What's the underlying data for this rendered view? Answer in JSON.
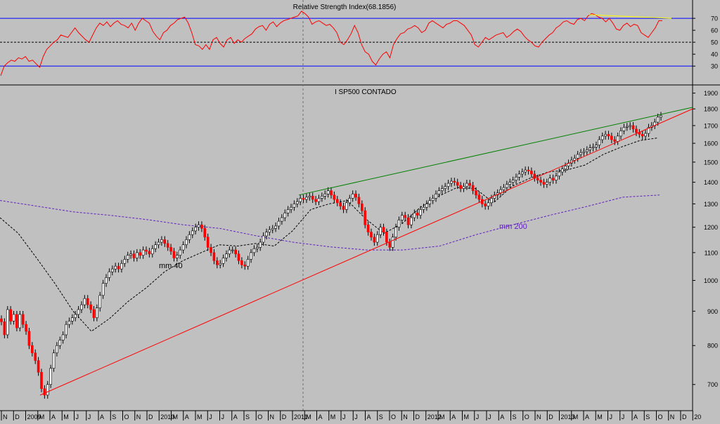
{
  "colors": {
    "background": "#c0c0c0",
    "rsi_line": "#ff0000",
    "rsi_bands": "#0000ff",
    "rsi_divergence": "#ffff00",
    "price_up": "#ffffff",
    "price_down": "#ff0000",
    "price_outline": "#000000",
    "upper_trend": "#008000",
    "lower_trend": "#ff0000",
    "ma200": "#6020c0",
    "ma40": "#000000"
  },
  "chart_data": [
    {
      "type": "line",
      "title": "Relative Strength Index(68.1856)",
      "ylim": [
        16,
        83
      ],
      "yticks": [
        "70",
        "60",
        "50",
        "40",
        "30"
      ],
      "bands": [
        30,
        50,
        70
      ],
      "grid": false,
      "series": [
        {
          "values": [
            22,
            30,
            33,
            35,
            34,
            37,
            36,
            38,
            34,
            35,
            32,
            29,
            38,
            44,
            47,
            50,
            52,
            56,
            55,
            54,
            58,
            62,
            58,
            55,
            52,
            50,
            56,
            62,
            66,
            64,
            67,
            63,
            66,
            68,
            65,
            64,
            62,
            66,
            60,
            66,
            70,
            68,
            66,
            59,
            55,
            52,
            58,
            60,
            64,
            66,
            69,
            70,
            71,
            66,
            58,
            48,
            47,
            44,
            48,
            44,
            52,
            54,
            49,
            46,
            52,
            54,
            49,
            52,
            50,
            53,
            55,
            57,
            61,
            63,
            64,
            60,
            65,
            67,
            63,
            66,
            68,
            69,
            70,
            71,
            72,
            76,
            74,
            71,
            65,
            67,
            68,
            66,
            64,
            65,
            62,
            58,
            50,
            48,
            52,
            57,
            64,
            58,
            48,
            42,
            40,
            34,
            31,
            36,
            40,
            42,
            37,
            48,
            53,
            57,
            58,
            61,
            62,
            64,
            62,
            58,
            60,
            66,
            68,
            66,
            64,
            62,
            65,
            66,
            68,
            68,
            66,
            64,
            60,
            56,
            48,
            46,
            50,
            54,
            52,
            54,
            56,
            57,
            58,
            54,
            56,
            59,
            61,
            59,
            55,
            52,
            50,
            47,
            46,
            50,
            53,
            56,
            58,
            62,
            64,
            67,
            68,
            66,
            65,
            69,
            70,
            68,
            72,
            74,
            73,
            71,
            70,
            67,
            70,
            66,
            61,
            60,
            64,
            66,
            63,
            65,
            64,
            58,
            56,
            54,
            58,
            62,
            68,
            68
          ]
        }
      ],
      "divergence_line": {
        "from": 73,
        "to": 70
      }
    },
    {
      "type": "candlestick",
      "title": "I SP500 CONTADO",
      "ylim": [
        640,
        1940
      ],
      "scale": "log",
      "yticks": [
        "1900",
        "1800",
        "1700",
        "1600",
        "1500",
        "1400",
        "1300",
        "1200",
        "1100",
        "1000",
        "900",
        "800",
        "700"
      ],
      "x": [
        "N",
        "D",
        "2009",
        "M",
        "A",
        "M",
        "J",
        "J",
        "A",
        "S",
        "O",
        "N",
        "D",
        "2010",
        "M",
        "A",
        "M",
        "J",
        "J",
        "A",
        "S",
        "O",
        "N",
        "D",
        "2011",
        "M",
        "A",
        "M",
        "J",
        "J",
        "A",
        "S",
        "O",
        "N",
        "D",
        "2012",
        "M",
        "A",
        "M",
        "J",
        "J",
        "A",
        "S",
        "O",
        "N",
        "D",
        "2013",
        "M",
        "A",
        "M",
        "J",
        "J",
        "A",
        "S",
        "O",
        "N",
        "D",
        "20"
      ],
      "series": [
        {
          "closes": [
            868,
            830,
            905,
            870,
            890,
            850,
            890,
            860,
            840,
            800,
            780,
            760,
            730,
            690,
            675,
            700,
            740,
            780,
            800,
            815,
            830,
            860,
            870,
            880,
            890,
            905,
            920,
            940,
            920,
            905,
            880,
            910,
            950,
            990,
            1010,
            1030,
            1040,
            1050,
            1040,
            1060,
            1075,
            1090,
            1095,
            1080,
            1100,
            1090,
            1110,
            1105,
            1095,
            1115,
            1130,
            1140,
            1150,
            1135,
            1120,
            1105,
            1080,
            1090,
            1110,
            1130,
            1150,
            1170,
            1185,
            1200,
            1210,
            1195,
            1160,
            1120,
            1100,
            1070,
            1055,
            1060,
            1080,
            1095,
            1110,
            1110,
            1095,
            1070,
            1055,
            1050,
            1075,
            1100,
            1115,
            1120,
            1140,
            1165,
            1180,
            1190,
            1195,
            1205,
            1225,
            1240,
            1260,
            1275,
            1285,
            1300,
            1310,
            1325,
            1320,
            1330,
            1335,
            1320,
            1310,
            1325,
            1335,
            1345,
            1360,
            1340,
            1320,
            1305,
            1290,
            1275,
            1305,
            1325,
            1345,
            1330,
            1300,
            1270,
            1210,
            1180,
            1160,
            1140,
            1170,
            1200,
            1180,
            1140,
            1120,
            1160,
            1200,
            1230,
            1250,
            1240,
            1210,
            1240,
            1260,
            1250,
            1275,
            1285,
            1300,
            1315,
            1325,
            1345,
            1360,
            1370,
            1380,
            1395,
            1405,
            1400,
            1385,
            1370,
            1380,
            1395,
            1385,
            1360,
            1340,
            1320,
            1300,
            1290,
            1305,
            1325,
            1340,
            1350,
            1365,
            1375,
            1390,
            1400,
            1410,
            1425,
            1440,
            1450,
            1460,
            1455,
            1440,
            1420,
            1410,
            1400,
            1390,
            1400,
            1420,
            1410,
            1430,
            1450,
            1465,
            1480,
            1495,
            1510,
            1520,
            1540,
            1550,
            1555,
            1565,
            1575,
            1580,
            1590,
            1620,
            1640,
            1650,
            1640,
            1620,
            1610,
            1640,
            1670,
            1690,
            1695,
            1700,
            1680,
            1660,
            1650,
            1640,
            1655,
            1690,
            1700,
            1720,
            1750,
            1760
          ]
        }
      ],
      "overlays": [
        {
          "name": "mm 40",
          "values": [
            1240,
            1175,
            1080,
            990,
            900,
            840,
            878,
            930,
            975,
            1030,
            1070,
            1100,
            1130,
            1125,
            1135,
            1125,
            1185,
            1275,
            1300,
            1315,
            1235,
            1175,
            1215,
            1285,
            1335,
            1375,
            1370,
            1305,
            1380,
            1420,
            1450,
            1460,
            1485,
            1540,
            1580,
            1615,
            1630
          ]
        },
        {
          "name": "mm 200",
          "values": [
            1315,
            1290,
            1265,
            1250,
            1232,
            1210,
            1195,
            1165,
            1140,
            1122,
            1110,
            1110,
            1125,
            1170,
            1210,
            1250,
            1288,
            1330,
            1340
          ]
        }
      ],
      "trendlines": [
        {
          "from": 675,
          "to": 1800
        },
        {
          "from": 1340,
          "to": 1810
        }
      ]
    }
  ]
}
